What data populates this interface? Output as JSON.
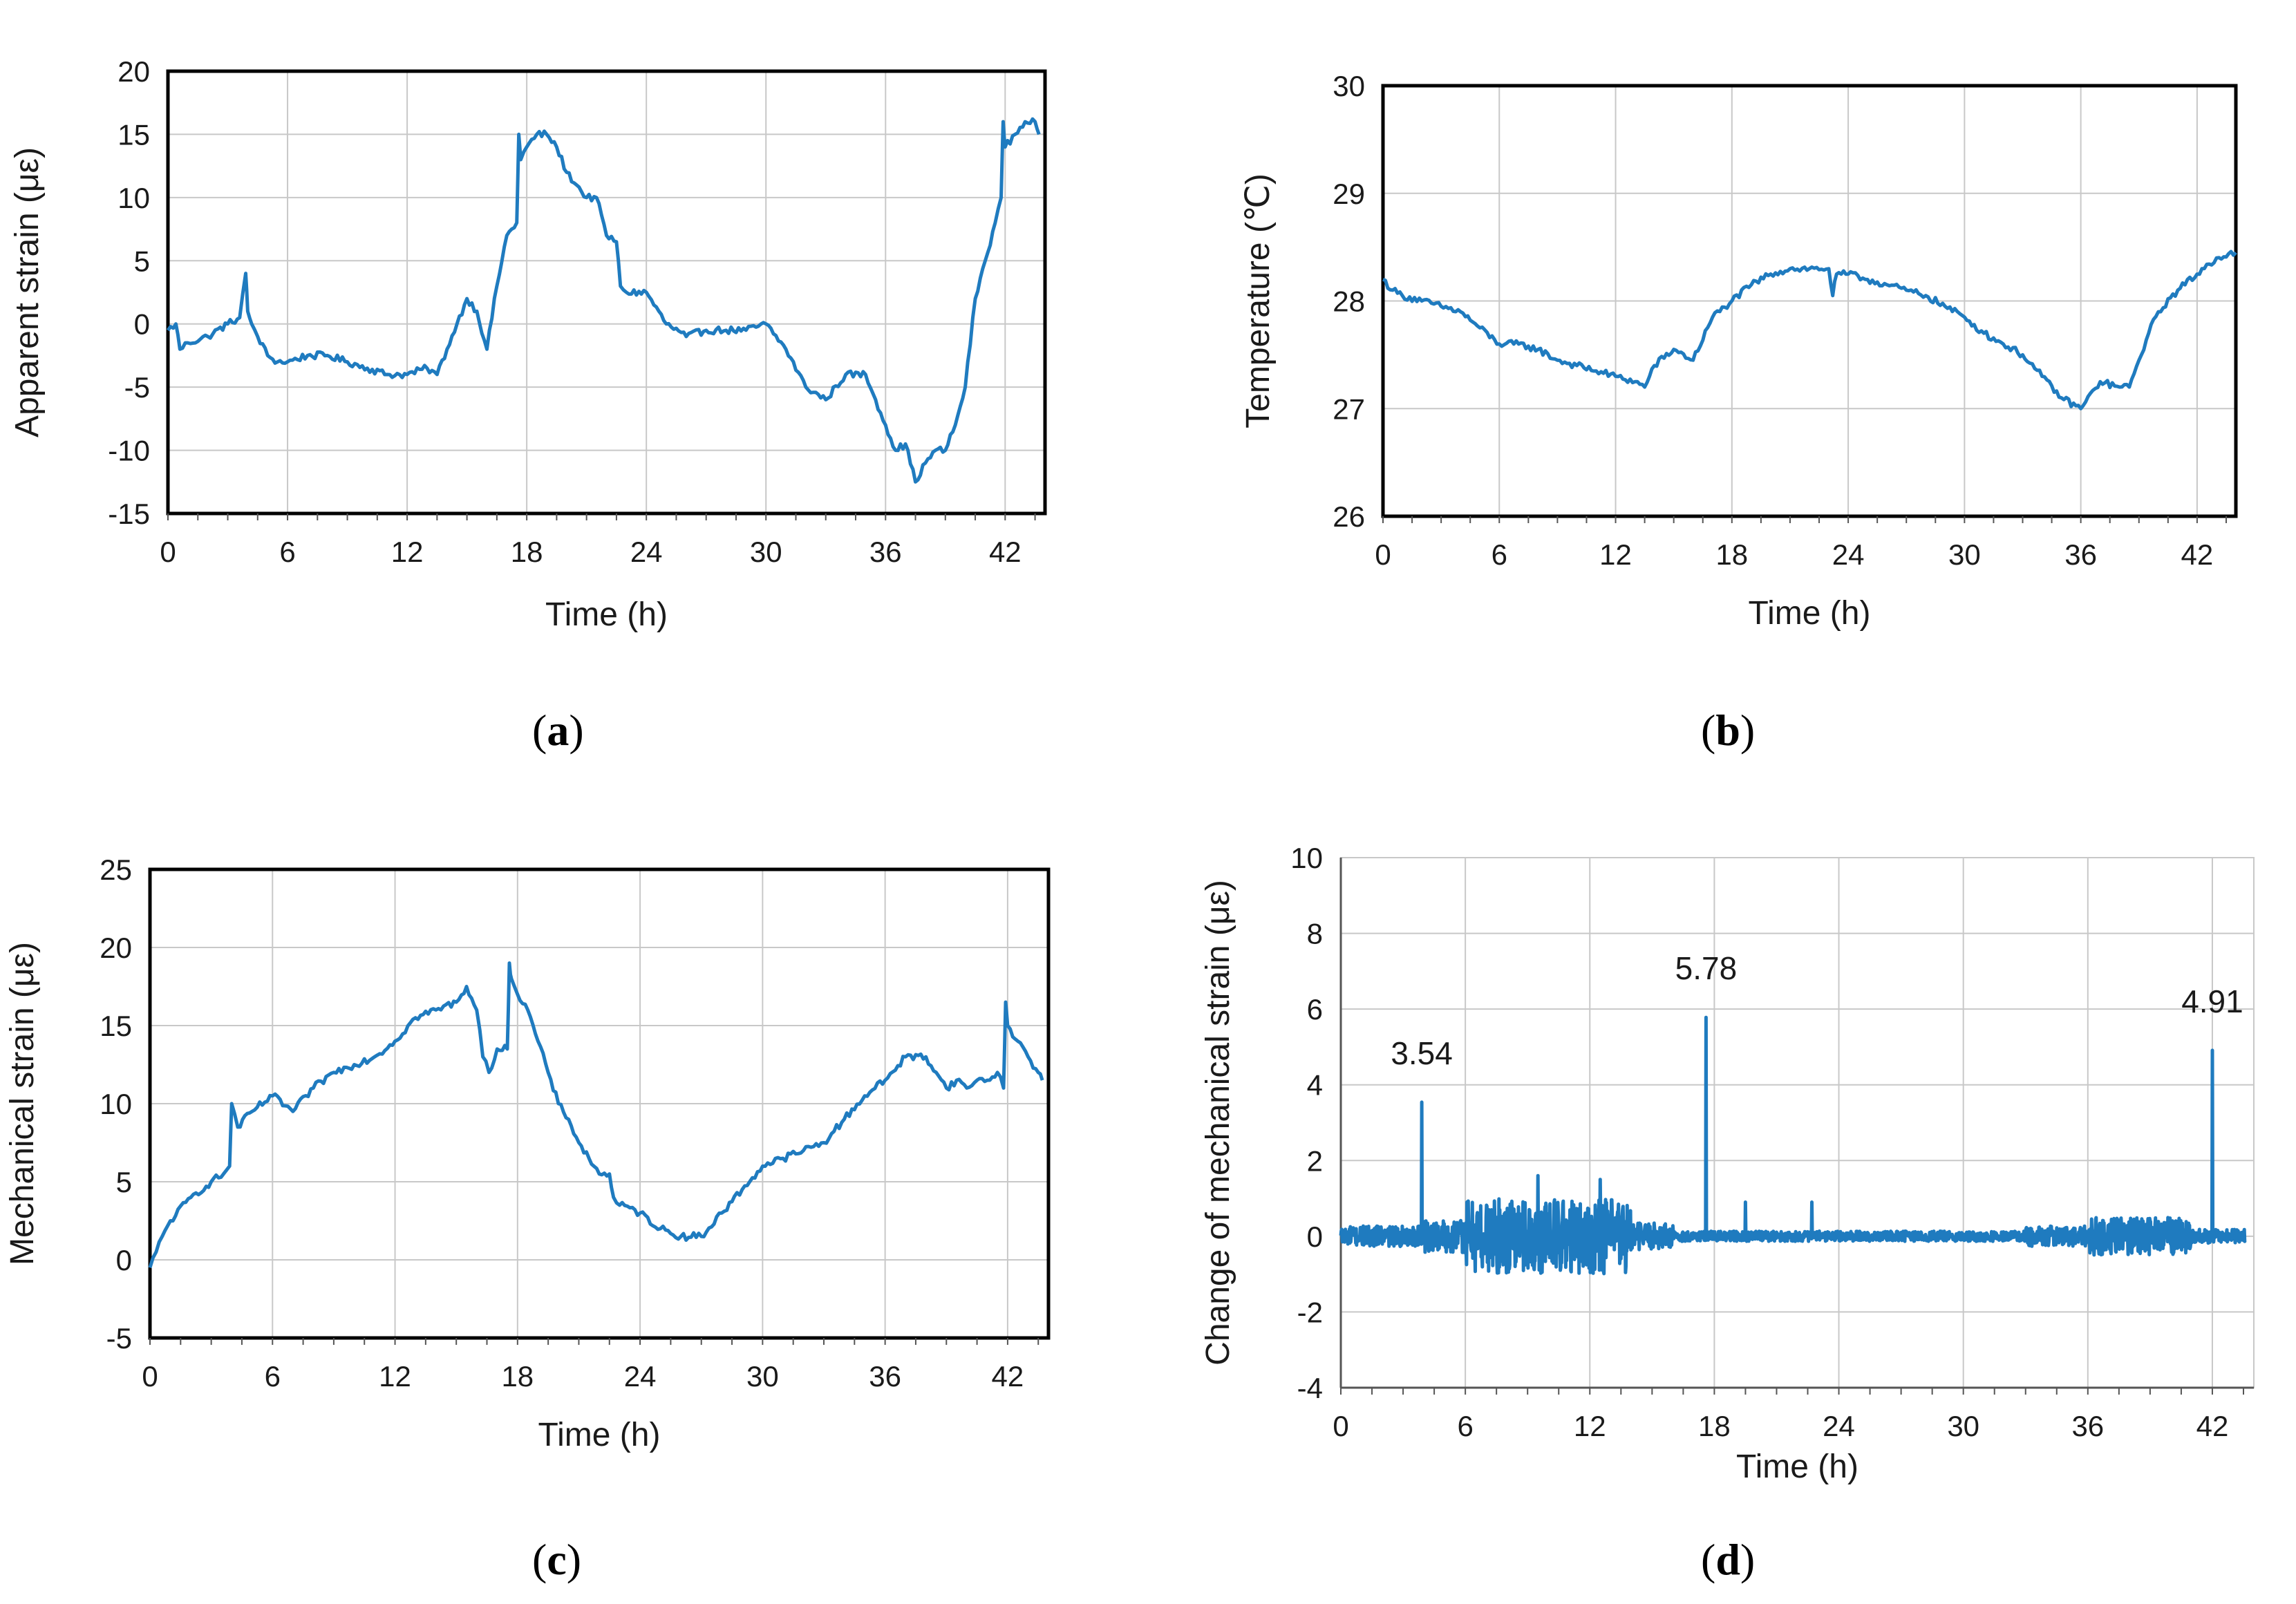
{
  "colors": {
    "series": "#1f7bbf",
    "grid": "#c8c8c8",
    "axis": "#000000",
    "text": "#1a1a1a"
  },
  "chart_data": [
    {
      "id": "a",
      "type": "line",
      "caption_label": "a",
      "title": "",
      "xlabel": "Time (h)",
      "ylabel": "Apparent strain (με)",
      "xlim": [
        0,
        44
      ],
      "ylim": [
        -15,
        20
      ],
      "xticks": [
        0,
        6,
        12,
        18,
        24,
        30,
        36,
        42
      ],
      "yticks": [
        -15,
        -10,
        -5,
        0,
        5,
        10,
        15,
        20
      ],
      "box": "full",
      "annotations": [],
      "series": [
        {
          "name": "Apparent strain",
          "x": [
            0,
            0.4,
            0.6,
            1,
            2,
            3,
            3.6,
            3.9,
            4.0,
            4.2,
            4.5,
            5,
            5.5,
            6,
            7,
            8,
            9,
            10,
            11,
            12,
            13,
            13.5,
            14,
            14.5,
            15,
            15.5,
            16,
            16.5,
            17,
            17.5,
            17.6,
            17.7,
            18,
            18.5,
            19,
            19.5,
            20,
            20.5,
            21,
            21.5,
            22,
            22.5,
            22.7,
            23,
            24,
            25,
            26,
            27,
            28,
            29,
            30,
            31,
            32,
            33,
            34,
            35,
            35.5,
            36,
            36.5,
            37,
            37.5,
            38,
            38.5,
            39,
            39.5,
            40,
            40.5,
            41,
            41.5,
            41.8,
            41.9,
            42,
            42.5,
            43,
            43.5,
            43.7
          ],
          "y": [
            -0.5,
            0,
            -2,
            -1.5,
            -1,
            0,
            0.5,
            4,
            1,
            0,
            -1,
            -2.5,
            -3,
            -3,
            -2.5,
            -2.5,
            -3,
            -3.5,
            -4,
            -4,
            -3.5,
            -4,
            -2,
            0,
            2,
            1,
            -2,
            3,
            7,
            8,
            15,
            13,
            14,
            15,
            15,
            14,
            12,
            11,
            10,
            10,
            7,
            6.5,
            3,
            2.5,
            2.5,
            0,
            -1,
            -0.5,
            -0.5,
            -0.5,
            0,
            -2,
            -5,
            -6,
            -4,
            -4,
            -6,
            -8,
            -10,
            -9.5,
            -12.5,
            -11,
            -10,
            -10,
            -8,
            -5,
            2,
            5,
            8,
            10,
            16,
            14,
            15,
            16,
            16,
            15
          ]
        }
      ]
    },
    {
      "id": "b",
      "type": "line",
      "caption_label": "b",
      "title": "",
      "xlabel": "Time (h)",
      "ylabel": "Temperature (℃)",
      "xlim": [
        0,
        44
      ],
      "ylim": [
        26,
        30
      ],
      "xticks": [
        0,
        6,
        12,
        18,
        24,
        30,
        36,
        42
      ],
      "yticks": [
        26,
        27,
        28,
        29,
        30
      ],
      "box": "full",
      "annotations": [],
      "series": [
        {
          "name": "Temperature",
          "x": [
            0,
            0.5,
            1,
            2,
            3,
            4,
            5,
            6,
            7,
            8,
            9,
            10,
            11,
            12,
            13,
            13.5,
            14,
            15,
            16,
            17,
            18,
            19,
            20,
            21,
            22,
            23,
            23.2,
            23.4,
            24,
            25,
            26,
            27,
            28,
            29,
            30,
            31,
            32,
            33,
            34,
            35,
            36,
            37,
            38,
            38.5,
            39,
            39.5,
            40,
            41,
            42,
            43,
            44
          ],
          "y": [
            28.2,
            28.1,
            28.05,
            28.0,
            27.95,
            27.9,
            27.75,
            27.6,
            27.6,
            27.55,
            27.45,
            27.4,
            27.35,
            27.3,
            27.25,
            27.2,
            27.4,
            27.55,
            27.45,
            27.85,
            28.0,
            28.15,
            28.25,
            28.3,
            28.3,
            28.3,
            28.05,
            28.25,
            28.25,
            28.2,
            28.15,
            28.1,
            28.05,
            27.95,
            27.85,
            27.7,
            27.6,
            27.5,
            27.3,
            27.1,
            27.0,
            27.25,
            27.2,
            27.2,
            27.45,
            27.7,
            27.9,
            28.1,
            28.25,
            28.4,
            28.45
          ]
        }
      ]
    },
    {
      "id": "c",
      "type": "line",
      "caption_label": "c",
      "title": "",
      "xlabel": "Time (h)",
      "ylabel": "Mechanical strain (με)",
      "xlim": [
        0,
        44
      ],
      "ylim": [
        -5,
        25
      ],
      "xticks": [
        0,
        6,
        12,
        18,
        24,
        30,
        36,
        42
      ],
      "yticks": [
        -5,
        0,
        5,
        10,
        15,
        20,
        25
      ],
      "box": "full",
      "annotations": [],
      "series": [
        {
          "name": "Mechanical strain",
          "x": [
            0,
            0.3,
            0.6,
            1,
            2,
            3,
            3.6,
            3.9,
            4.0,
            4.3,
            5,
            6,
            7,
            8,
            9,
            10,
            11,
            12,
            13,
            14,
            15,
            15.5,
            16,
            16.3,
            16.6,
            17,
            17.5,
            17.6,
            17.7,
            18,
            18.5,
            19,
            19.5,
            20,
            20.5,
            21,
            21.5,
            22,
            22.5,
            22.7,
            23,
            24,
            25,
            26,
            27,
            28,
            29,
            30,
            31,
            32,
            33,
            34,
            35,
            36,
            37,
            38,
            38.5,
            39,
            39.5,
            40,
            40.5,
            41,
            41.5,
            41.8,
            41.9,
            42,
            42.5,
            43,
            43.5,
            43.7
          ],
          "y": [
            -0.5,
            0.5,
            1.5,
            2.5,
            4,
            5,
            5.5,
            6,
            10,
            8.5,
            9.5,
            10.5,
            9.5,
            11,
            12,
            12.5,
            13,
            14,
            15.5,
            16,
            16.5,
            17.5,
            16,
            13,
            12,
            13.5,
            13.5,
            19,
            18,
            17,
            16,
            14,
            12,
            10,
            9,
            7.5,
            6.5,
            5.5,
            5.5,
            4,
            3.5,
            3,
            2,
            1.5,
            1.5,
            3,
            4.5,
            6,
            6.5,
            7,
            7.5,
            9,
            10.5,
            11.5,
            13,
            13,
            12,
            11,
            11.5,
            11,
            11.5,
            11.5,
            12,
            11,
            16.5,
            15,
            14,
            13,
            12,
            11.5
          ]
        }
      ]
    },
    {
      "id": "d",
      "type": "line",
      "caption_label": "d",
      "title": "",
      "xlabel": "Time (h)",
      "ylabel": "Change of mechanical strain (με)",
      "xlim": [
        0,
        44
      ],
      "ylim": [
        -4,
        10
      ],
      "xticks": [
        0,
        6,
        12,
        18,
        24,
        30,
        36,
        42
      ],
      "yticks": [
        -4,
        -2,
        0,
        2,
        4,
        6,
        8,
        10
      ],
      "box": "open",
      "annotations": [
        {
          "x": 3.9,
          "y": 3.54,
          "text": "3.54"
        },
        {
          "x": 17.6,
          "y": 5.78,
          "text": "5.78"
        },
        {
          "x": 42.0,
          "y": 4.91,
          "text": "4.91"
        }
      ],
      "series": [
        {
          "name": "Change of mechanical strain",
          "noise_profile": [
            {
              "from": 0,
              "to": 4,
              "amp": 0.3
            },
            {
              "from": 4,
              "to": 6,
              "amp": 0.5
            },
            {
              "from": 6,
              "to": 14,
              "amp": 1.1
            },
            {
              "from": 14,
              "to": 16,
              "amp": 0.4
            },
            {
              "from": 16,
              "to": 33,
              "amp": 0.15
            },
            {
              "from": 33,
              "to": 36,
              "amp": 0.3
            },
            {
              "from": 36,
              "to": 41,
              "amp": 0.55
            },
            {
              "from": 41,
              "to": 44,
              "amp": 0.2
            }
          ],
          "spikes": [
            {
              "x": 3.9,
              "y": 3.54
            },
            {
              "x": 17.6,
              "y": 5.78
            },
            {
              "x": 42.0,
              "y": 4.91
            },
            {
              "x": 9.5,
              "y": 1.6
            },
            {
              "x": 12.5,
              "y": 1.5
            },
            {
              "x": 19.5,
              "y": 0.9
            },
            {
              "x": 22.7,
              "y": 0.9
            }
          ]
        }
      ]
    }
  ]
}
